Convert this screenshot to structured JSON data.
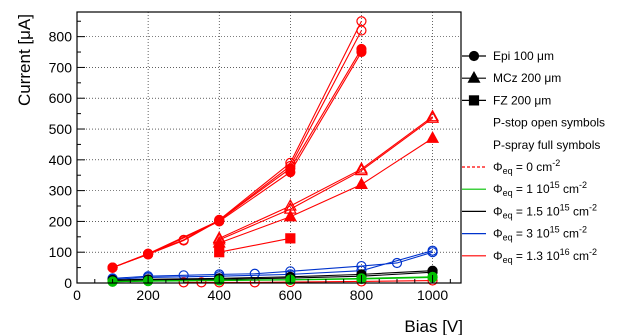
{
  "chart_data": {
    "type": "scatter",
    "xlabel": "Bias [V]",
    "ylabel": "Current [μA]",
    "xlim": [
      0,
      1080
    ],
    "ylim": [
      0,
      880
    ],
    "x_ticks": [
      0,
      200,
      400,
      600,
      800,
      1000
    ],
    "y_ticks": [
      0,
      100,
      200,
      300,
      400,
      500,
      600,
      700,
      800
    ],
    "grid": true,
    "legend_position": "right",
    "legend": [
      {
        "label": "Epi 100 μm",
        "marker": "circle",
        "fill": true,
        "color": "#000000"
      },
      {
        "label": "MCz 200 μm",
        "marker": "triangle",
        "fill": true,
        "color": "#000000"
      },
      {
        "label": "FZ 200 μm",
        "marker": "square",
        "fill": true,
        "color": "#000000"
      },
      {
        "label": "P-stop open symbols",
        "marker": "none"
      },
      {
        "label": "P-spray full symbols",
        "marker": "none"
      },
      {
        "label": "Φeq = 0 cm-2",
        "phi": true,
        "value": "0 cm",
        "exp": "-2",
        "line": "dashed",
        "color": "#ff0000"
      },
      {
        "label": "Φeq = 1 10^15 cm-2",
        "phi": true,
        "value": "1 10",
        "vexp": "15",
        "unit": " cm",
        "exp": "-2",
        "line": "solid",
        "color": "#00c000"
      },
      {
        "label": "Φeq = 1.5 10^15 cm-2",
        "phi": true,
        "value": "1.5 10",
        "vexp": "15",
        "unit": " cm",
        "exp": "-2",
        "line": "solid",
        "color": "#000000"
      },
      {
        "label": "Φeq = 3 10^15 cm-2",
        "phi": true,
        "value": "3 10",
        "vexp": "15",
        "unit": " cm",
        "exp": "-2",
        "line": "solid",
        "color": "#0033cc"
      },
      {
        "label": "Φeq = 1.3 10^16 cm-2",
        "phi": true,
        "value": "1.3 10",
        "vexp": "16",
        "unit": " cm",
        "exp": "-2",
        "line": "solid",
        "color": "#ff0000"
      }
    ],
    "series": [
      {
        "color": "#ff0000",
        "marker": "circle",
        "fill": false,
        "x": [
          100,
          200,
          300,
          400,
          600,
          800
        ],
        "y": [
          50,
          95,
          140,
          205,
          390,
          850
        ]
      },
      {
        "color": "#ff0000",
        "marker": "circle",
        "fill": false,
        "x": [
          100,
          200,
          300,
          400,
          600,
          800
        ],
        "y": [
          50,
          93,
          138,
          203,
          380,
          820
        ]
      },
      {
        "color": "#ff0000",
        "marker": "circle",
        "fill": true,
        "x": [
          100,
          200,
          400,
          600,
          800
        ],
        "y": [
          50,
          93,
          200,
          360,
          750
        ]
      },
      {
        "color": "#ff0000",
        "marker": "circle",
        "fill": true,
        "x": [
          100,
          200,
          400,
          600,
          800
        ],
        "y": [
          50,
          95,
          203,
          372,
          760
        ]
      },
      {
        "color": "#ff0000",
        "marker": "triangle",
        "fill": false,
        "x": [
          400,
          600,
          800,
          1000
        ],
        "y": [
          145,
          250,
          370,
          540
        ]
      },
      {
        "color": "#ff0000",
        "marker": "triangle",
        "fill": false,
        "x": [
          400,
          600,
          800,
          1000
        ],
        "y": [
          140,
          240,
          365,
          535
        ]
      },
      {
        "color": "#ff0000",
        "marker": "triangle",
        "fill": true,
        "x": [
          400,
          600,
          800,
          1000
        ],
        "y": [
          130,
          215,
          320,
          470
        ]
      },
      {
        "color": "#ff0000",
        "marker": "square",
        "fill": true,
        "x": [
          400,
          600
        ],
        "y": [
          100,
          145
        ]
      },
      {
        "color": "#ff0000",
        "marker": "circle",
        "fill": false,
        "x": [
          300,
          350,
          400,
          500,
          600,
          800,
          1000
        ],
        "y": [
          2,
          2,
          2,
          2,
          3,
          5,
          8
        ]
      },
      {
        "color": "#0033cc",
        "marker": "circle",
        "fill": false,
        "x": [
          100,
          200,
          300,
          400,
          500,
          600,
          800,
          900,
          1000
        ],
        "y": [
          15,
          22,
          25,
          28,
          30,
          38,
          55,
          65,
          100
        ]
      },
      {
        "color": "#0033cc",
        "marker": "circle",
        "fill": false,
        "x": [
          100,
          200,
          400,
          600,
          800,
          1000
        ],
        "y": [
          12,
          18,
          22,
          28,
          40,
          105
        ]
      },
      {
        "color": "#000000",
        "marker": "circle",
        "fill": true,
        "x": [
          100,
          200,
          400,
          600,
          800,
          1000
        ],
        "y": [
          10,
          12,
          15,
          20,
          28,
          40
        ]
      },
      {
        "color": "#000000",
        "marker": "circle",
        "fill": true,
        "x": [
          100,
          200,
          400,
          600,
          800,
          1000
        ],
        "y": [
          8,
          10,
          12,
          16,
          22,
          35
        ]
      },
      {
        "color": "#00c000",
        "marker": "circle",
        "fill": true,
        "x": [
          100,
          200,
          400,
          600,
          800,
          1000
        ],
        "y": [
          5,
          7,
          9,
          11,
          15,
          20
        ]
      },
      {
        "color": "#00c000",
        "marker": "circle",
        "fill": false,
        "x": [
          100,
          200,
          400,
          600,
          800,
          1000
        ],
        "y": [
          4,
          6,
          8,
          10,
          13,
          18
        ]
      }
    ]
  }
}
